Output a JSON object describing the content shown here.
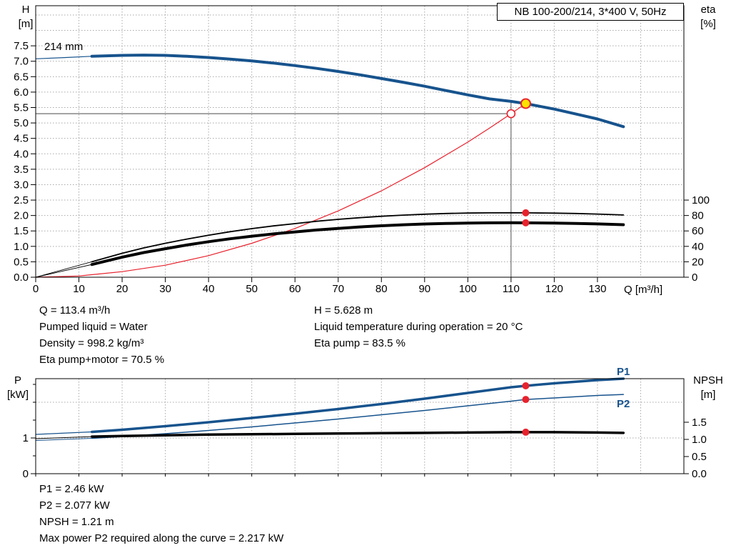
{
  "pump_title": "NB 100-200/214, 3*400 V, 50Hz",
  "axis_labels": {
    "h": [
      "H",
      "[m]"
    ],
    "eta": [
      "eta",
      "[%]"
    ],
    "q": "Q [m³/h]",
    "p": [
      "P",
      "[kW]"
    ],
    "npsh": [
      "NPSH",
      "[m]"
    ]
  },
  "curve_labels": {
    "impeller": "214 mm",
    "p1": "P1",
    "p2": "P2"
  },
  "duty_info_left": [
    "Q = 113.4 m³/h",
    "Pumped liquid = Water",
    "Density = 998.2 kg/m³",
    "Eta pump+motor = 70.5 %"
  ],
  "duty_info_right": [
    "H = 5.628 m",
    "Liquid temperature during operation = 20 °C",
    "Eta pump = 83.5 %"
  ],
  "power_info": [
    "P1 = 2.46 kW",
    "P2 = 2.077 kW",
    "NPSH = 1.21 m",
    "Max power P2 required along the curve = 2.217 kW"
  ],
  "colors": {
    "curve_blue": "#17538d",
    "curve_red": "#e8222d",
    "curve_black": "#000000",
    "marker_yellow": "#ffe100",
    "grid": "#a8a8a8",
    "crosshair": "#6e6e6e"
  },
  "chart_data": [
    {
      "name": "qh-eta-chart",
      "type": "line",
      "title": "NB 100-200/214, 3*400 V, 50Hz",
      "xlabel": "Q [m³/h]",
      "ylabel_left": "H [m]",
      "ylabel_right": "eta [%]",
      "xlim": [
        0,
        150
      ],
      "ylim_left": [
        0,
        8.8
      ],
      "ylim_right": [
        0,
        352
      ],
      "impeller_label": "214 mm",
      "x_ticks": [
        [
          0,
          "0"
        ],
        [
          10,
          "10"
        ],
        [
          20,
          "20"
        ],
        [
          30,
          "30"
        ],
        [
          40,
          "40"
        ],
        [
          50,
          "50"
        ],
        [
          60,
          "60"
        ],
        [
          70,
          "70"
        ],
        [
          80,
          "80"
        ],
        [
          90,
          "90"
        ],
        [
          100,
          "100"
        ],
        [
          110,
          "110"
        ],
        [
          120,
          "120"
        ],
        [
          130,
          "130"
        ]
      ],
      "grid_x": [
        10,
        20,
        30,
        40,
        50,
        60,
        70,
        80,
        90,
        100,
        110,
        120,
        130,
        140
      ],
      "ticks_left": [
        [
          0,
          "0.0"
        ],
        [
          0.5,
          "0.5"
        ],
        [
          1,
          "1.0"
        ],
        [
          1.5,
          "1.5"
        ],
        [
          2,
          "2.0"
        ],
        [
          2.5,
          "2.5"
        ],
        [
          3,
          "3.0"
        ],
        [
          3.5,
          "3.5"
        ],
        [
          4,
          "4.0"
        ],
        [
          4.5,
          "4.5"
        ],
        [
          5,
          "5.0"
        ],
        [
          5.5,
          "5.5"
        ],
        [
          6,
          "6.0"
        ],
        [
          6.5,
          "6.5"
        ],
        [
          7,
          "7.0"
        ],
        [
          7.5,
          "7.5"
        ]
      ],
      "grid_y": [
        0.5,
        1,
        1.5,
        2,
        2.5,
        3,
        3.5,
        4,
        4.5,
        5,
        5.5,
        6,
        6.5,
        7,
        7.5,
        8,
        8.5
      ],
      "ticks_right": [
        [
          0,
          "0"
        ],
        [
          20,
          "20"
        ],
        [
          40,
          "40"
        ],
        [
          60,
          "60"
        ],
        [
          80,
          "80"
        ],
        [
          100,
          "100"
        ]
      ],
      "crosshair": {
        "q": 110,
        "h": 5.3,
        "v_to": 5.7
      },
      "series": [
        {
          "name": "system-curve",
          "axis": "left",
          "color": "curve_red",
          "width": 1.2,
          "points": [
            [
              0,
              0
            ],
            [
              10,
              0.04
            ],
            [
              20,
              0.18
            ],
            [
              30,
              0.39
            ],
            [
              40,
              0.7
            ],
            [
              50,
              1.1
            ],
            [
              60,
              1.58
            ],
            [
              70,
              2.15
            ],
            [
              80,
              2.8
            ],
            [
              90,
              3.55
            ],
            [
              100,
              4.38
            ],
            [
              105,
              4.83
            ],
            [
              110,
              5.3
            ],
            [
              113.4,
              5.63
            ]
          ]
        },
        {
          "name": "eta-pump-curve",
          "axis": "right",
          "color": "curve_black",
          "width": 1.8,
          "lead": [
            [
              0,
              0
            ],
            [
              13,
              20
            ]
          ],
          "lead_width": 0.9,
          "points": [
            [
              13,
              20
            ],
            [
              20,
              31
            ],
            [
              25,
              38
            ],
            [
              30,
              44
            ],
            [
              35,
              49.5
            ],
            [
              40,
              54.5
            ],
            [
              45,
              59
            ],
            [
              50,
              63
            ],
            [
              55,
              66.5
            ],
            [
              60,
              69.5
            ],
            [
              65,
              72.5
            ],
            [
              70,
              75
            ],
            [
              75,
              77.2
            ],
            [
              80,
              79
            ],
            [
              85,
              80.5
            ],
            [
              90,
              81.7
            ],
            [
              95,
              82.6
            ],
            [
              100,
              83.2
            ],
            [
              105,
              83.5
            ],
            [
              110,
              83.6
            ],
            [
              113.4,
              83.5
            ],
            [
              120,
              83.1
            ],
            [
              125,
              82.6
            ],
            [
              130,
              81.9
            ],
            [
              136,
              80.7
            ]
          ]
        },
        {
          "name": "eta-pump-motor-curve",
          "axis": "right",
          "color": "curve_black",
          "width": 4,
          "lead": [
            [
              0,
              0
            ],
            [
              13,
              16.5
            ]
          ],
          "lead_width": 0.9,
          "points": [
            [
              13,
              16.5
            ],
            [
              20,
              26
            ],
            [
              25,
              32
            ],
            [
              30,
              37
            ],
            [
              35,
              41.8
            ],
            [
              40,
              46
            ],
            [
              45,
              49.8
            ],
            [
              50,
              53.2
            ],
            [
              55,
              56.1
            ],
            [
              60,
              58.7
            ],
            [
              65,
              61.2
            ],
            [
              70,
              63.3
            ],
            [
              75,
              65.2
            ],
            [
              80,
              66.7
            ],
            [
              85,
              68
            ],
            [
              90,
              69
            ],
            [
              95,
              69.7
            ],
            [
              100,
              70.2
            ],
            [
              105,
              70.5
            ],
            [
              110,
              70.6
            ],
            [
              113.4,
              70.5
            ],
            [
              120,
              70.1
            ],
            [
              125,
              69.7
            ],
            [
              130,
              69.1
            ],
            [
              136,
              68.1
            ]
          ]
        },
        {
          "name": "head-curve-214mm",
          "axis": "left",
          "color": "curve_blue",
          "width": 4,
          "lead": [
            [
              0,
              7.08
            ],
            [
              7,
              7.12
            ],
            [
              13,
              7.16
            ]
          ],
          "lead_width": 1.2,
          "points": [
            [
              13,
              7.16
            ],
            [
              20,
              7.19
            ],
            [
              25,
              7.2
            ],
            [
              30,
              7.19
            ],
            [
              35,
              7.16
            ],
            [
              40,
              7.12
            ],
            [
              45,
              7.07
            ],
            [
              50,
              7.01
            ],
            [
              55,
              6.94
            ],
            [
              60,
              6.86
            ],
            [
              65,
              6.77
            ],
            [
              70,
              6.67
            ],
            [
              75,
              6.56
            ],
            [
              80,
              6.44
            ],
            [
              85,
              6.32
            ],
            [
              90,
              6.19
            ],
            [
              95,
              6.05
            ],
            [
              100,
              5.91
            ],
            [
              105,
              5.78
            ],
            [
              110,
              5.7
            ],
            [
              113.4,
              5.628
            ],
            [
              120,
              5.45
            ],
            [
              125,
              5.29
            ],
            [
              130,
              5.13
            ],
            [
              136,
              4.88
            ]
          ]
        }
      ],
      "markers": [
        {
          "name": "requested-duty-point",
          "x": 110,
          "y": 5.3,
          "axis": "left",
          "style": "open-red"
        },
        {
          "name": "actual-duty-point",
          "x": 113.4,
          "y": 5.628,
          "axis": "left",
          "style": "duty-yellow"
        },
        {
          "name": "eta-pump-duty-dot",
          "x": 113.4,
          "y": 83.5,
          "axis": "right",
          "style": "dot-red"
        },
        {
          "name": "eta-pump-motor-duty-dot",
          "x": 113.4,
          "y": 70.5,
          "axis": "right",
          "style": "dot-red"
        }
      ]
    },
    {
      "name": "power-npsh-chart",
      "type": "line",
      "title": "",
      "xlabel": "",
      "ylabel_left": "P [kW]",
      "ylabel_right": "NPSH [m]",
      "xlim": [
        0,
        150
      ],
      "ylim_left": [
        0,
        2.66
      ],
      "ylim_right": [
        0,
        2.77
      ],
      "x_ticks": [
        [
          0
        ],
        [
          10
        ],
        [
          20
        ],
        [
          30
        ],
        [
          40
        ],
        [
          50
        ],
        [
          60
        ],
        [
          70
        ],
        [
          80
        ],
        [
          90
        ],
        [
          100
        ],
        [
          110
        ],
        [
          120
        ],
        [
          130
        ]
      ],
      "x_tick_len": 4,
      "grid_x": [
        10,
        20,
        30,
        40,
        50,
        60,
        70,
        80,
        90,
        100,
        110,
        120,
        130,
        140
      ],
      "ticks_left": [
        [
          0,
          "0"
        ],
        [
          1,
          "1"
        ]
      ],
      "ticks_left_minor": [
        0.5,
        1.5,
        2,
        2.5
      ],
      "grid_y": [
        1,
        2
      ],
      "ticks_right": [
        [
          0,
          "0.0"
        ],
        [
          0.5,
          "0.5"
        ],
        [
          1,
          "1.0"
        ],
        [
          1.5,
          "1.5"
        ]
      ],
      "series": [
        {
          "name": "p2-curve",
          "axis": "left",
          "color": "curve_blue",
          "width": 1.5,
          "lead": [
            [
              0,
              0.93
            ],
            [
              13,
              0.99
            ]
          ],
          "lead_width": 1,
          "points": [
            [
              13,
              0.99
            ],
            [
              20,
              1.04
            ],
            [
              30,
              1.12
            ],
            [
              40,
              1.21
            ],
            [
              50,
              1.31
            ],
            [
              60,
              1.42
            ],
            [
              70,
              1.53
            ],
            [
              80,
              1.65
            ],
            [
              90,
              1.77
            ],
            [
              100,
              1.9
            ],
            [
              110,
              2.03
            ],
            [
              113.4,
              2.077
            ],
            [
              120,
              2.12
            ],
            [
              130,
              2.19
            ],
            [
              136,
              2.217
            ]
          ]
        },
        {
          "name": "p1-curve",
          "axis": "left",
          "color": "curve_blue",
          "width": 3.5,
          "lead": [
            [
              0,
              1.1
            ],
            [
              13,
              1.17
            ]
          ],
          "lead_width": 1.2,
          "points": [
            [
              13,
              1.17
            ],
            [
              20,
              1.23
            ],
            [
              30,
              1.33
            ],
            [
              40,
              1.44
            ],
            [
              50,
              1.56
            ],
            [
              60,
              1.68
            ],
            [
              70,
              1.81
            ],
            [
              80,
              1.95
            ],
            [
              90,
              2.1
            ],
            [
              100,
              2.26
            ],
            [
              110,
              2.42
            ],
            [
              113.4,
              2.46
            ],
            [
              120,
              2.53
            ],
            [
              130,
              2.62
            ],
            [
              136,
              2.66
            ]
          ]
        },
        {
          "name": "npsh-curve",
          "axis": "right",
          "color": "curve_black",
          "width": 3.5,
          "lead": [
            [
              0,
              1.02
            ],
            [
              13,
              1.08
            ]
          ],
          "lead_width": 1,
          "points": [
            [
              13,
              1.08
            ],
            [
              20,
              1.1
            ],
            [
              30,
              1.12
            ],
            [
              40,
              1.14
            ],
            [
              50,
              1.15
            ],
            [
              60,
              1.16
            ],
            [
              70,
              1.17
            ],
            [
              80,
              1.18
            ],
            [
              90,
              1.19
            ],
            [
              100,
              1.2
            ],
            [
              110,
              1.21
            ],
            [
              113.4,
              1.21
            ],
            [
              120,
              1.21
            ],
            [
              130,
              1.2
            ],
            [
              136,
              1.19
            ]
          ]
        }
      ],
      "markers": [
        {
          "name": "p1-duty-dot",
          "x": 113.4,
          "y": 2.46,
          "axis": "left",
          "style": "dot-red"
        },
        {
          "name": "p2-duty-dot",
          "x": 113.4,
          "y": 2.077,
          "axis": "left",
          "style": "dot-red"
        },
        {
          "name": "npsh-duty-dot",
          "x": 113.4,
          "y": 1.21,
          "axis": "right",
          "style": "dot-red"
        }
      ]
    }
  ]
}
